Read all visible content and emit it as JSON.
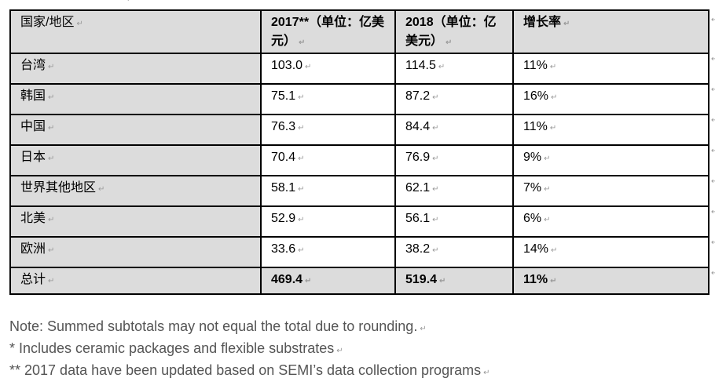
{
  "table": {
    "headers": [
      "国家/地区",
      "2017**（单位：亿美元）",
      "2018（单位：亿美元）",
      "增长率"
    ],
    "rows": [
      [
        "台湾",
        "103.0",
        "114.5",
        "11%"
      ],
      [
        "韩国",
        "75.1",
        "87.2",
        "16%"
      ],
      [
        "中国",
        "76.3",
        "84.4",
        "11%"
      ],
      [
        "日本",
        "70.4",
        "76.9",
        "9%"
      ],
      [
        "世界其他地区",
        "58.1",
        "62.1",
        "7%"
      ],
      [
        "北美",
        "52.9",
        "56.1",
        "6%"
      ],
      [
        "欧洲",
        "33.6",
        "38.2",
        "14%"
      ]
    ],
    "total": [
      "总计",
      "469.4",
      "519.4",
      "11%"
    ]
  },
  "notes": [
    "Note: Summed subtotals may not equal the total due to rounding.",
    "* Includes ceramic packages and flexible substrates",
    "** 2017 data have been updated based on SEMI’s data collection programs"
  ],
  "paragraph_mark": "↵",
  "colors": {
    "shading": "#dcdcdc",
    "note_text": "#555555"
  }
}
